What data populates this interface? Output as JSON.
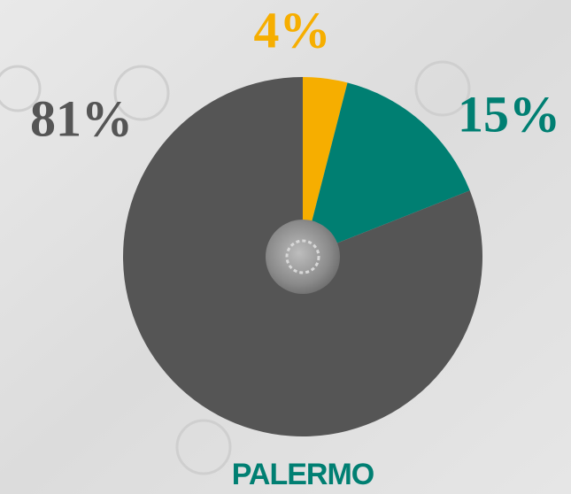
{
  "chart_data": {
    "type": "pie",
    "title": "PALERMO",
    "values": [
      4,
      15,
      81
    ],
    "value_labels": [
      "4%",
      "15%",
      "81%"
    ],
    "colors": [
      "#f6ae00",
      "#007f72",
      "#555555"
    ],
    "title_color": "#007f72"
  }
}
